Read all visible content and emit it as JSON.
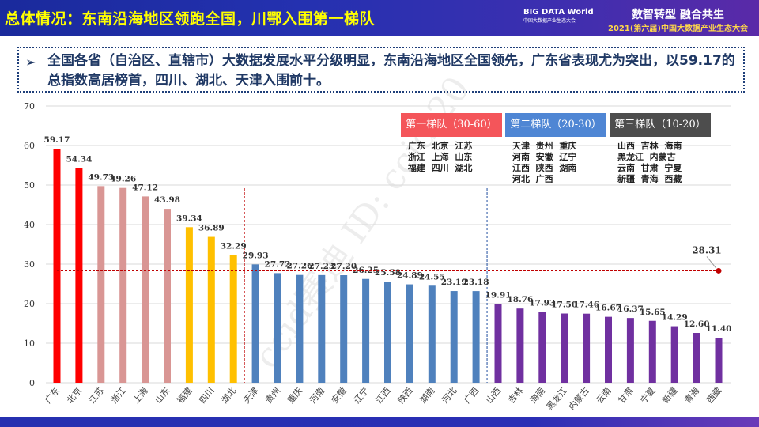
{
  "header": {
    "title": "总体情况：东南沿海地区领跑全国，川鄂入围第一梯队",
    "logo_text": "BIG DATA World",
    "logo_sub": "中国大数据产业生态大会",
    "slogan": "数智转型 融合共生",
    "event": "2021(第六届)中国大数据产业生态大会"
  },
  "note": {
    "bullet_icon": "arrow-right-icon",
    "text": "全国各省（自治区、直辖市）大数据发展水平分级明显，东南沿海地区全国领先，广东省表现尤为突出，以59.17的总指数高居榜首，四川、湖北、天津入围前十。"
  },
  "watermark": "ccid赛迪  ID: ccid-20",
  "tiers": [
    {
      "label": "第一梯队（30-60）",
      "color": "#f4555a",
      "members": "广东  北京  江苏\n浙江  上海  山东\n福建  四川  湖北"
    },
    {
      "label": "第二梯队（20-30）",
      "color": "#4f86d4",
      "members": "天津  贵州  重庆\n河南  安徽  辽宁\n江西  陕西  湖南\n河北  广西"
    },
    {
      "label": "第三梯队（10-20）",
      "color": "#4d4d4d",
      "members": "山西  吉林  海南\n黑龙江  内蒙古\n云南  甘肃  宁夏\n新疆  青海  西藏"
    }
  ],
  "chart_data": {
    "type": "bar",
    "categories": [
      "广东",
      "北京",
      "江苏",
      "浙江",
      "上海",
      "山东",
      "福建",
      "四川",
      "湖北",
      "天津",
      "贵州",
      "重庆",
      "河南",
      "安徽",
      "辽宁",
      "江西",
      "陕西",
      "湖南",
      "河北",
      "广西",
      "山西",
      "吉林",
      "海南",
      "黑龙江",
      "内蒙古",
      "云南",
      "甘肃",
      "宁夏",
      "新疆",
      "青海",
      "西藏"
    ],
    "values": [
      59.17,
      54.34,
      49.73,
      49.26,
      47.12,
      43.98,
      39.34,
      36.89,
      32.29,
      29.93,
      27.72,
      27.26,
      27.23,
      27.2,
      26.25,
      25.58,
      24.89,
      24.55,
      23.19,
      23.18,
      19.91,
      18.76,
      17.93,
      17.5,
      17.46,
      16.67,
      16.37,
      15.65,
      14.29,
      12.6,
      11.4
    ],
    "bar_colors": [
      "#ff0000",
      "#ff0000",
      "#d99694",
      "#d99694",
      "#d99694",
      "#d99694",
      "#ffc000",
      "#ffc000",
      "#ffc000",
      "#4f81bd",
      "#4f81bd",
      "#4f81bd",
      "#4f81bd",
      "#4f81bd",
      "#4f81bd",
      "#4f81bd",
      "#4f81bd",
      "#4f81bd",
      "#4f81bd",
      "#4f81bd",
      "#7030a0",
      "#7030a0",
      "#7030a0",
      "#7030a0",
      "#7030a0",
      "#7030a0",
      "#7030a0",
      "#7030a0",
      "#7030a0",
      "#7030a0",
      "#7030a0"
    ],
    "average": {
      "value": 28.31,
      "label": "28.31",
      "color": "#c00000"
    },
    "yticks": [
      "0",
      "10",
      "20",
      "30",
      "40",
      "50",
      "60",
      "70"
    ],
    "ylim": [
      0,
      70
    ],
    "grid": true,
    "title": "",
    "xlabel": "",
    "ylabel": ""
  }
}
